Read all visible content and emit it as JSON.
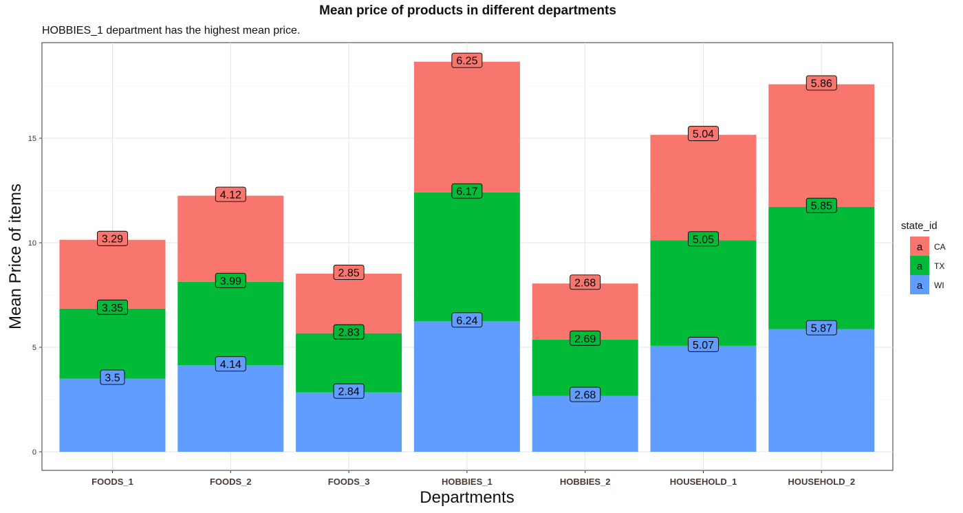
{
  "chart_data": {
    "type": "bar",
    "stacked": true,
    "title": "Mean price of products in different departments",
    "subtitle": "HOBBIES_1 department has the highest mean price.",
    "xlabel": "Departments",
    "ylabel": "Mean Price of items",
    "categories": [
      "FOODS_1",
      "FOODS_2",
      "FOODS_3",
      "HOBBIES_1",
      "HOBBIES_2",
      "HOUSEHOLD_1",
      "HOUSEHOLD_2"
    ],
    "ylim": [
      0,
      19.5
    ],
    "yticks": [
      0,
      5,
      10,
      15
    ],
    "grid": true,
    "legend": {
      "title": "state_id",
      "position": "right",
      "key_glyph": "a"
    },
    "series": [
      {
        "name": "WI",
        "color": "#619CFF",
        "values": [
          3.5,
          4.14,
          2.84,
          6.24,
          2.68,
          5.07,
          5.87
        ],
        "labels": [
          "3.5",
          "4.14",
          "2.84",
          "6.24",
          "2.68",
          "5.07",
          "5.87"
        ]
      },
      {
        "name": "TX",
        "color": "#00BA38",
        "values": [
          3.35,
          3.99,
          2.83,
          6.17,
          2.69,
          5.05,
          5.85
        ],
        "labels": [
          "3.35",
          "3.99",
          "2.83",
          "6.17",
          "2.69",
          "5.05",
          "5.85"
        ]
      },
      {
        "name": "CA",
        "color": "#F8766D",
        "values": [
          3.29,
          4.12,
          2.85,
          6.25,
          2.68,
          5.04,
          5.86
        ],
        "labels": [
          "3.29",
          "4.12",
          "2.85",
          "6.25",
          "2.68",
          "5.04",
          "5.86"
        ]
      }
    ],
    "legend_order": [
      "CA",
      "TX",
      "WI"
    ]
  }
}
